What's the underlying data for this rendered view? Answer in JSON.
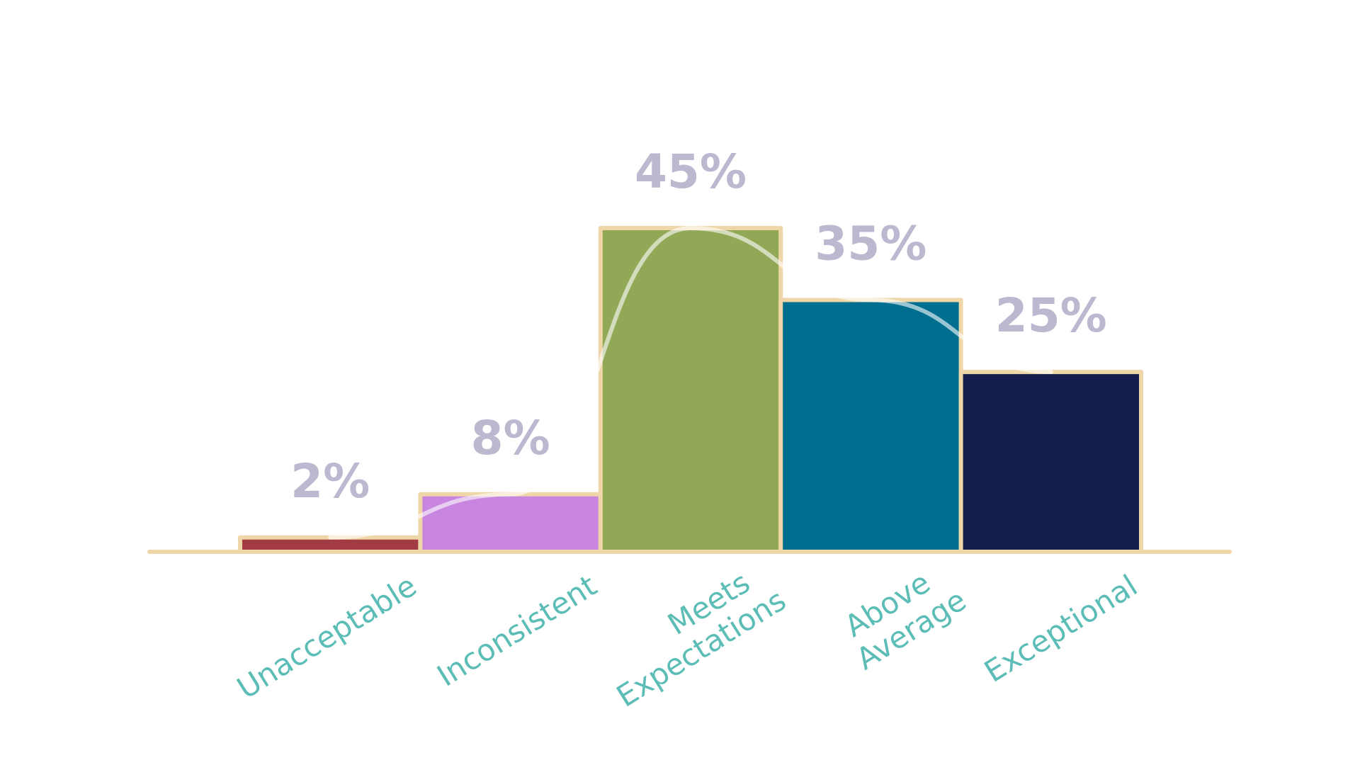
{
  "chart_data": {
    "type": "bar",
    "categories": [
      "Unacceptable",
      "Inconsistent",
      "Meets Expectations",
      "Above Average",
      "Exceptional"
    ],
    "values": [
      2,
      8,
      45,
      35,
      25
    ],
    "value_labels": [
      "2%",
      "8%",
      "45%",
      "35%",
      "25%"
    ],
    "colors": [
      "#a33c42",
      "#c886e0",
      "#91a857",
      "#006e8f",
      "#141d4b"
    ],
    "grid": false
  }
}
